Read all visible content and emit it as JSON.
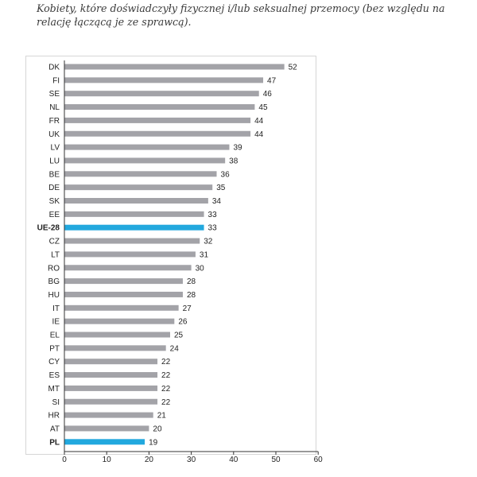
{
  "title": "Kobiety, które doświadczyły fizycznej i/lub seksualnej przemocy (bez względu na relację łączącą je ze sprawcą).",
  "colors": {
    "bar": "#a3a3a8",
    "highlight": "#22a8de",
    "axis": "#333333"
  },
  "chart_data": {
    "type": "bar",
    "orientation": "horizontal",
    "title": "Kobiety, które doświadczyły fizycznej i/lub seksualnej przemocy (bez względu na relację łączącą je ze sprawcą).",
    "categories": [
      "DK",
      "FI",
      "SE",
      "NL",
      "FR",
      "UK",
      "LV",
      "LU",
      "BE",
      "DE",
      "SK",
      "EE",
      "UE-28",
      "CZ",
      "LT",
      "RO",
      "BG",
      "HU",
      "IT",
      "IE",
      "EL",
      "PT",
      "CY",
      "ES",
      "MT",
      "SI",
      "HR",
      "AT",
      "PL"
    ],
    "values": [
      52,
      47,
      46,
      45,
      44,
      44,
      39,
      38,
      36,
      35,
      34,
      33,
      33,
      32,
      31,
      30,
      28,
      28,
      27,
      26,
      25,
      24,
      22,
      22,
      22,
      22,
      21,
      20,
      19
    ],
    "highlighted": [
      "UE-28",
      "PL"
    ],
    "xlim": [
      0,
      60
    ],
    "xticks": [
      0,
      10,
      20,
      30,
      40,
      50,
      60
    ],
    "xlabel": "",
    "ylabel": "",
    "grid": false
  }
}
